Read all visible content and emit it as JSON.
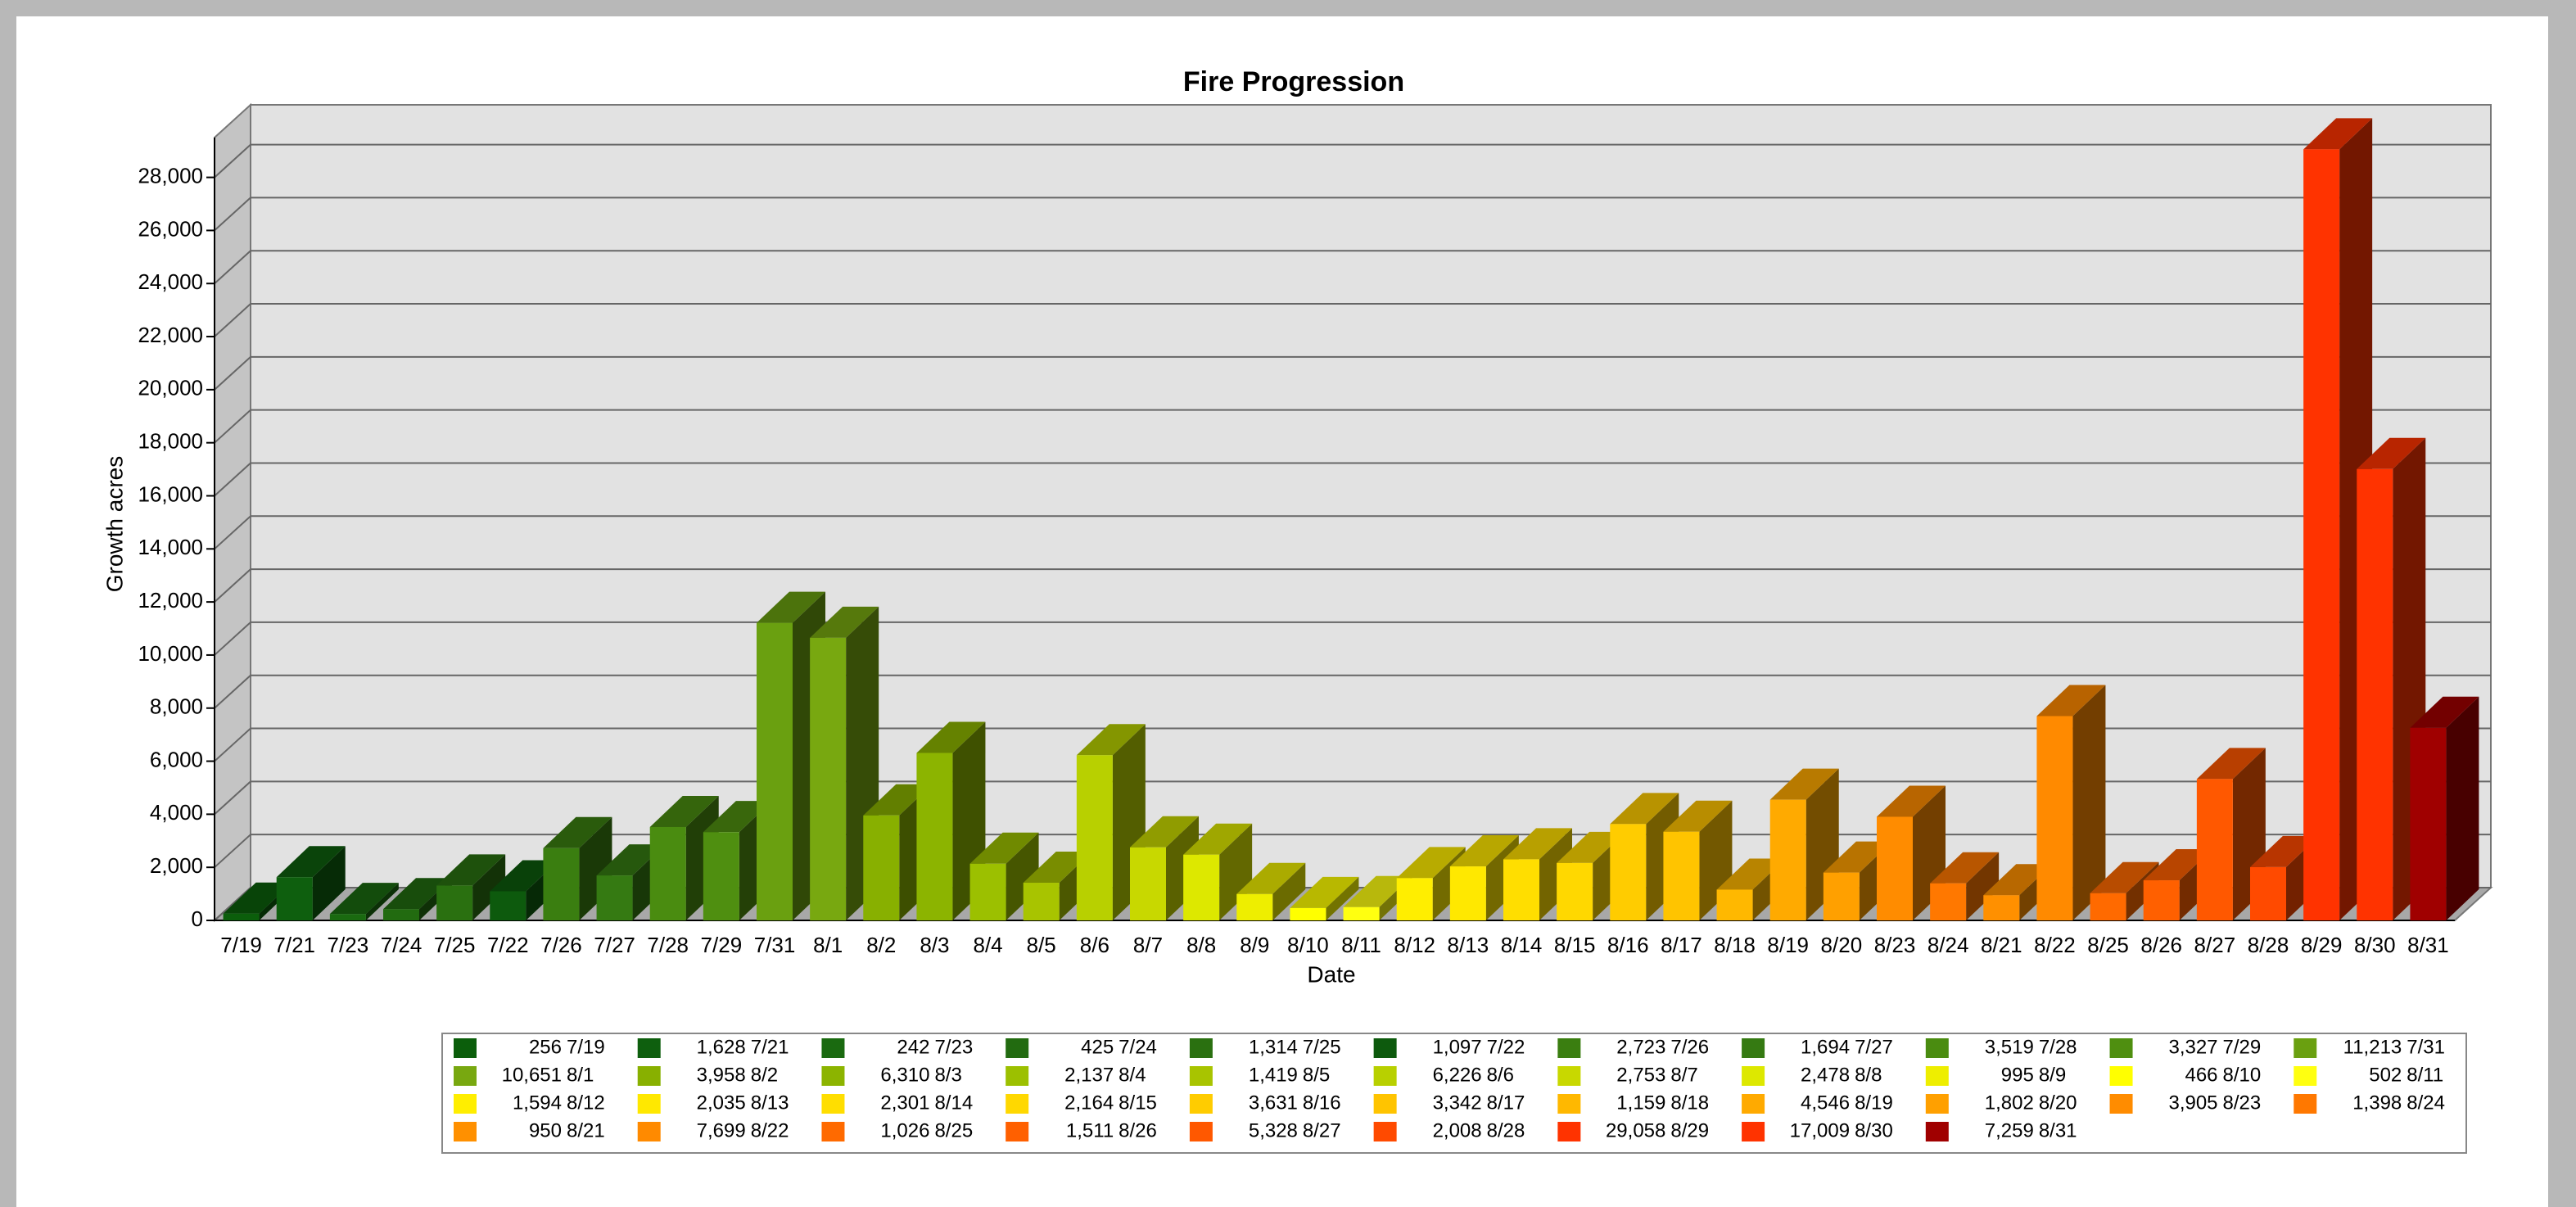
{
  "chart_data": {
    "type": "bar",
    "title": "Fire Progression",
    "x_label": "Date",
    "y_label": "Growth acres",
    "categories": [
      "7/19",
      "7/21",
      "7/23",
      "7/24",
      "7/25",
      "7/22",
      "7/26",
      "7/27",
      "7/28",
      "7/29",
      "7/31",
      "8/1",
      "8/2",
      "8/3",
      "8/4",
      "8/5",
      "8/6",
      "8/7",
      "8/8",
      "8/9",
      "8/10",
      "8/11",
      "8/12",
      "8/13",
      "8/14",
      "8/15",
      "8/16",
      "8/17",
      "8/18",
      "8/19",
      "8/20",
      "8/23",
      "8/24",
      "8/21",
      "8/22",
      "8/25",
      "8/26",
      "8/27",
      "8/28",
      "8/29",
      "8/30",
      "8/31"
    ],
    "values": [
      256,
      1628,
      242,
      425,
      1314,
      1097,
      2723,
      1694,
      3519,
      3327,
      11213,
      10651,
      3958,
      6310,
      2137,
      1419,
      6226,
      2753,
      2478,
      995,
      466,
      502,
      1594,
      2035,
      2301,
      2164,
      3631,
      3342,
      1159,
      4546,
      1802,
      3905,
      1398,
      950,
      7699,
      1026,
      1511,
      5328,
      2008,
      29058,
      17009,
      7259
    ],
    "value_labels": [
      "256",
      "1,628",
      "242",
      "425",
      "1,314",
      "1,097",
      "2,723",
      "1,694",
      "3,519",
      "3,327",
      "11,213",
      "10,651",
      "3,958",
      "6,310",
      "2,137",
      "1,419",
      "6,226",
      "2,753",
      "2,478",
      "995",
      "466",
      "502",
      "1,594",
      "2,035",
      "2,301",
      "2,164",
      "3,631",
      "3,342",
      "1,159",
      "4,546",
      "1,802",
      "3,905",
      "1,398",
      "950",
      "7,699",
      "1,026",
      "1,511",
      "5,328",
      "2,008",
      "29,058",
      "17,009",
      "7,259"
    ],
    "colors": [
      "#0b5e0b",
      "#0e5f0e",
      "#1a6a10",
      "#226b10",
      "#2a7010",
      "#0d5a0d",
      "#3a7e10",
      "#357a12",
      "#4a8c10",
      "#4f8f10",
      "#6aa010",
      "#78a810",
      "#88b000",
      "#8cb400",
      "#9cc000",
      "#a8c400",
      "#b8d000",
      "#c8d800",
      "#dde800",
      "#eeee00",
      "#ffff00",
      "#ffff10",
      "#ffee00",
      "#ffe800",
      "#ffde00",
      "#ffd800",
      "#ffcc00",
      "#ffc400",
      "#ffb800",
      "#ffaa00",
      "#ffa000",
      "#ff8c00",
      "#ff7800",
      "#ff9000",
      "#ff8a00",
      "#ff6a00",
      "#ff6000",
      "#ff5800",
      "#ff4a00",
      "#ff3300",
      "#ff3300",
      "#a00000"
    ],
    "ylim": [
      0,
      29500
    ],
    "yticks": [
      0,
      {
        "value": 2000,
        "label": "2,000"
      },
      {
        "value": 4000,
        "label": "4,000"
      },
      {
        "value": 6000,
        "label": "6,000"
      },
      {
        "value": 8000,
        "label": "8,000"
      },
      {
        "value": 10000,
        "label": "10,000"
      },
      {
        "value": 12000,
        "label": "12,000"
      },
      {
        "value": 14000,
        "label": "14,000"
      },
      {
        "value": 16000,
        "label": "16,000"
      },
      {
        "value": 18000,
        "label": "18,000"
      },
      {
        "value": 20000,
        "label": "20,000"
      },
      {
        "value": 22000,
        "label": "22,000"
      },
      {
        "value": 24000,
        "label": "24,000"
      },
      {
        "value": 26000,
        "label": "26,000"
      },
      {
        "value": 28000,
        "label": "28,000"
      }
    ],
    "grid": true
  }
}
